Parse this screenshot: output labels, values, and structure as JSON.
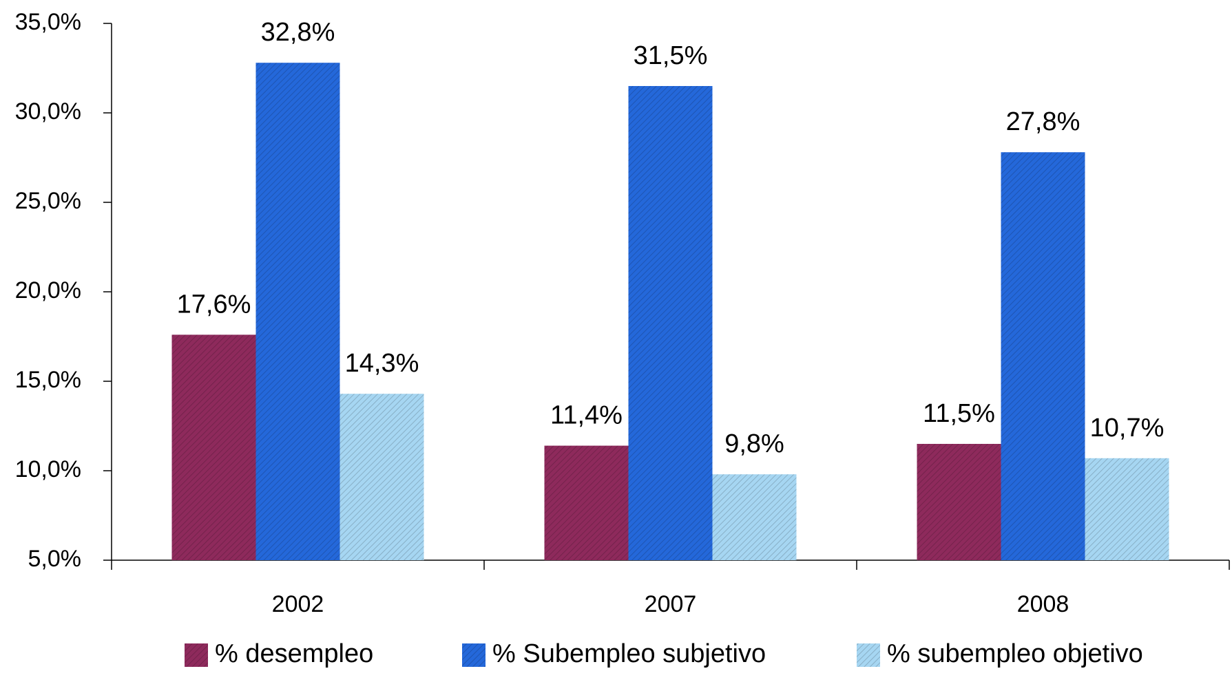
{
  "chart_data": {
    "type": "bar",
    "categories": [
      "2002",
      "2007",
      "2008"
    ],
    "series": [
      {
        "name": "% desempleo",
        "color": "#8e2a5c",
        "values": [
          17.6,
          11.4,
          11.5
        ],
        "value_labels": [
          "17,6%",
          "11,4%",
          "11,5%"
        ]
      },
      {
        "name": "% Subempleo subjetivo",
        "color": "#2468da",
        "values": [
          32.8,
          31.5,
          27.8
        ],
        "value_labels": [
          "32,8%",
          "31,5%",
          "27,8%"
        ]
      },
      {
        "name": "% subempleo objetivo",
        "color": "#a6d6f2",
        "values": [
          14.3,
          9.8,
          10.7
        ],
        "value_labels": [
          "14,3%",
          "9,8%",
          "10,7%"
        ]
      }
    ],
    "ylim": [
      5,
      35
    ],
    "yticks": [
      {
        "value": 5,
        "label": "5,0%"
      },
      {
        "value": 10,
        "label": "10,0%"
      },
      {
        "value": 15,
        "label": "15,0%"
      },
      {
        "value": 20,
        "label": "20,0%"
      },
      {
        "value": 25,
        "label": "25,0%"
      },
      {
        "value": 30,
        "label": "30,0%"
      },
      {
        "value": 35,
        "label": "35,0%"
      }
    ],
    "legend": "bottom"
  }
}
